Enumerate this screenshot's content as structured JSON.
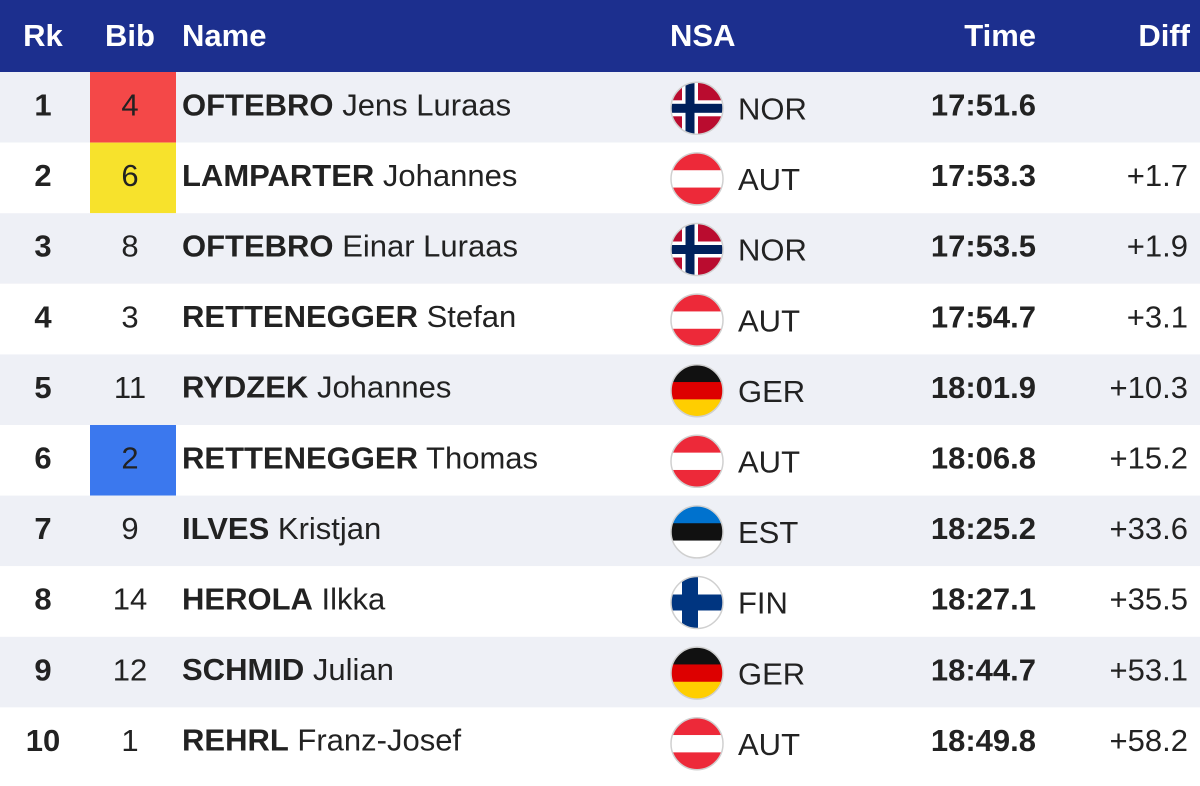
{
  "table": {
    "header": {
      "rk": "Rk",
      "bib": "Bib",
      "name": "Name",
      "nsa": "NSA",
      "time": "Time",
      "diff": "Diff"
    },
    "rows": [
      {
        "rk": "1",
        "bib": "4",
        "bib_color": "#f44848",
        "surname": "OFTEBRO",
        "given": "Jens Luraas",
        "nsa": "NOR",
        "time": "17:51.6"
      },
      {
        "rk": "2",
        "bib": "6",
        "bib_color": "#f7e22c",
        "surname": "LAMPARTER",
        "given": "Johannes",
        "nsa": "AUT",
        "time": "17:53.3",
        "diff": "+1.7"
      },
      {
        "rk": "3",
        "bib": "8",
        "surname": "OFTEBRO",
        "given": "Einar Luraas",
        "nsa": "NOR",
        "time": "17:53.5",
        "diff": "+1.9"
      },
      {
        "rk": "4",
        "bib": "3",
        "surname": "RETTENEGGER",
        "given": "Stefan",
        "nsa": "AUT",
        "time": "17:54.7",
        "diff": "+3.1"
      },
      {
        "rk": "5",
        "bib": "11",
        "surname": "RYDZEK",
        "given": "Johannes",
        "nsa": "GER",
        "time": "18:01.9",
        "diff": "+10.3"
      },
      {
        "rk": "6",
        "bib": "2",
        "bib_color": "#3b78ee",
        "surname": "RETTENEGGER",
        "given": "Thomas",
        "nsa": "AUT",
        "time": "18:06.8",
        "diff": "+15.2"
      },
      {
        "rk": "7",
        "bib": "9",
        "surname": "ILVES",
        "given": "Kristjan",
        "nsa": "EST",
        "time": "18:25.2",
        "diff": "+33.6"
      },
      {
        "rk": "8",
        "bib": "14",
        "surname": "HEROLA",
        "given": "Ilkka",
        "nsa": "FIN",
        "time": "18:27.1",
        "diff": "+35.5"
      },
      {
        "rk": "9",
        "bib": "12",
        "surname": "SCHMID",
        "given": "Julian",
        "nsa": "GER",
        "time": "18:44.7",
        "diff": "+53.1"
      },
      {
        "rk": "10",
        "bib": "1",
        "surname": "REHRL",
        "given": "Franz-Josef",
        "nsa": "AUT",
        "time": "18:49.8",
        "diff": "+58.2"
      }
    ],
    "flags": {
      "NOR": {
        "kind": "cross",
        "colors": [
          "#ba0c2f",
          "#ffffff",
          "#00205b"
        ]
      },
      "AUT": {
        "kind": "stripes",
        "colors": [
          "#ed2939",
          "#ffffff",
          "#ed2939"
        ]
      },
      "GER": {
        "kind": "stripes",
        "colors": [
          "#111111",
          "#dd0000",
          "#ffce00"
        ]
      },
      "EST": {
        "kind": "stripes",
        "colors": [
          "#0072ce",
          "#111111",
          "#ffffff"
        ]
      },
      "FIN": {
        "kind": "cross",
        "colors": [
          "#ffffff",
          "#003580",
          "#003580"
        ]
      }
    }
  }
}
